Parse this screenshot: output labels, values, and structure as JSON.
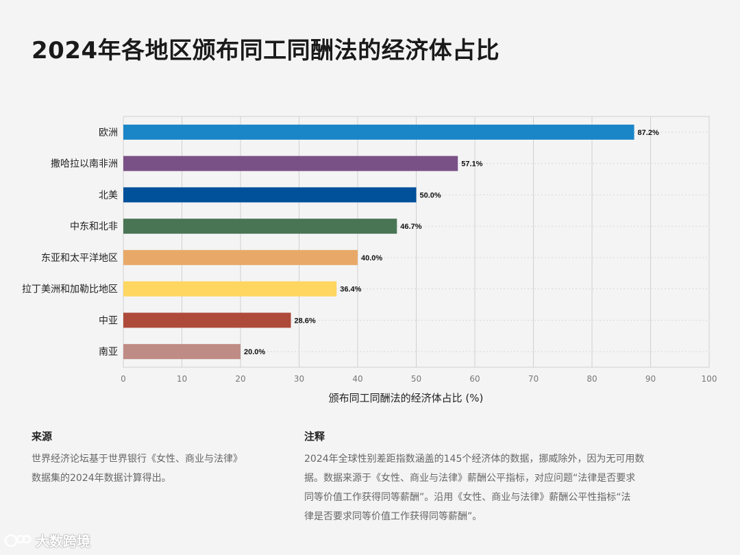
{
  "header": {
    "title": "2024年各地区颁布同工同酬法的经济体占比"
  },
  "chart_data": {
    "type": "bar",
    "orientation": "horizontal",
    "title": "2024年各地区颁布同工同酬法的经济体占比",
    "xlabel": "颁布同工同酬法的经济体占比 (%)",
    "ylabel": "",
    "xlim": [
      0,
      100
    ],
    "xticks": [
      0,
      10,
      20,
      30,
      40,
      50,
      60,
      70,
      80,
      90,
      100
    ],
    "grid": "vertical",
    "categories": [
      "欧洲",
      "撒哈拉以南非洲",
      "北美",
      "中东和北非",
      "东亚和太平洋地区",
      "拉丁美洲和加勒比地区",
      "中亚",
      "南亚"
    ],
    "values": [
      87.2,
      57.1,
      50.0,
      46.7,
      40.0,
      36.4,
      28.6,
      20.0
    ],
    "value_labels": [
      "87.2%",
      "57.1%",
      "50.0%",
      "46.7%",
      "40.0%",
      "36.4%",
      "28.6%",
      "20.0%"
    ],
    "colors": [
      "#1a86c8",
      "#7a5187",
      "#00509a",
      "#4a7555",
      "#e8a968",
      "#fed660",
      "#ad4a3a",
      "#bf8c85"
    ]
  },
  "footer": {
    "source_heading": "来源",
    "source_lines": [
      "世界经济论坛基于世界银行《女性、商业与法律》",
      "数据集的2024年数据计算得出。"
    ],
    "note_heading": "注释",
    "note_lines": [
      "2024年全球性别差距指数涵盖的145个经济体的数据，挪威除外，因为无可用数",
      "据。数据来源于《女性、商业与法律》薪酬公平指标，对应问题“法律是否要求",
      "同等价值工作获得同等薪酬”。沿用《女性、商业与法律》薪酬公平性指标“法",
      "律是否要求同等价值工作获得同等薪酬”。"
    ]
  },
  "brand": {
    "name": "大数跨境",
    "icon": "brand-logo-icon"
  }
}
